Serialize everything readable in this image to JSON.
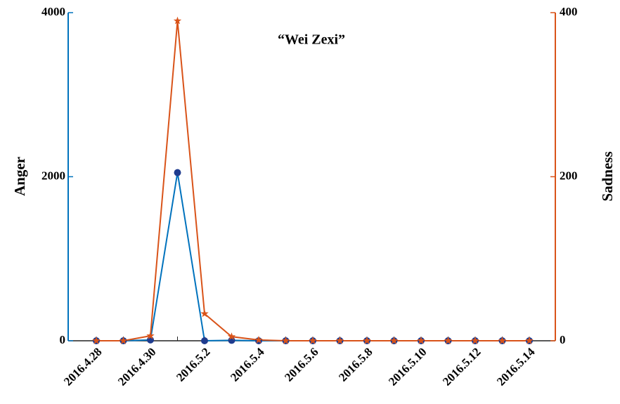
{
  "chart_data": {
    "type": "line",
    "title": "“Wei Zexi”",
    "categories": [
      "2016.4.28",
      null,
      "2016.4.30",
      null,
      "2016.5.2",
      null,
      "2016.5.4",
      null,
      "2016.5.6",
      null,
      "2016.5.8",
      null,
      "2016.5.10",
      null,
      "2016.5.12",
      null,
      "2016.5.14"
    ],
    "y_label": "Anger",
    "y2_label": "Sadness",
    "ylim": [
      0,
      4000
    ],
    "yticks": [
      0,
      2000,
      4000
    ],
    "y2lim": [
      0,
      400
    ],
    "y2ticks": [
      0,
      200,
      400
    ],
    "series": [
      {
        "name": "Anger",
        "color": "#0072BD",
        "marker_color": "#1f3c8f",
        "marker": "circle",
        "values": [
          0,
          0,
          10,
          2050,
          0,
          5,
          0,
          0,
          0,
          0,
          0,
          0,
          0,
          0,
          0,
          0,
          0
        ]
      },
      {
        "name": "Sadness",
        "color": "#D95319",
        "marker_color": "#D95319",
        "marker": "star",
        "axis": "y2",
        "values": [
          0,
          0,
          6,
          390,
          33,
          5,
          1,
          0,
          0,
          0,
          0,
          0,
          0,
          0,
          0,
          0,
          0
        ]
      }
    ]
  }
}
